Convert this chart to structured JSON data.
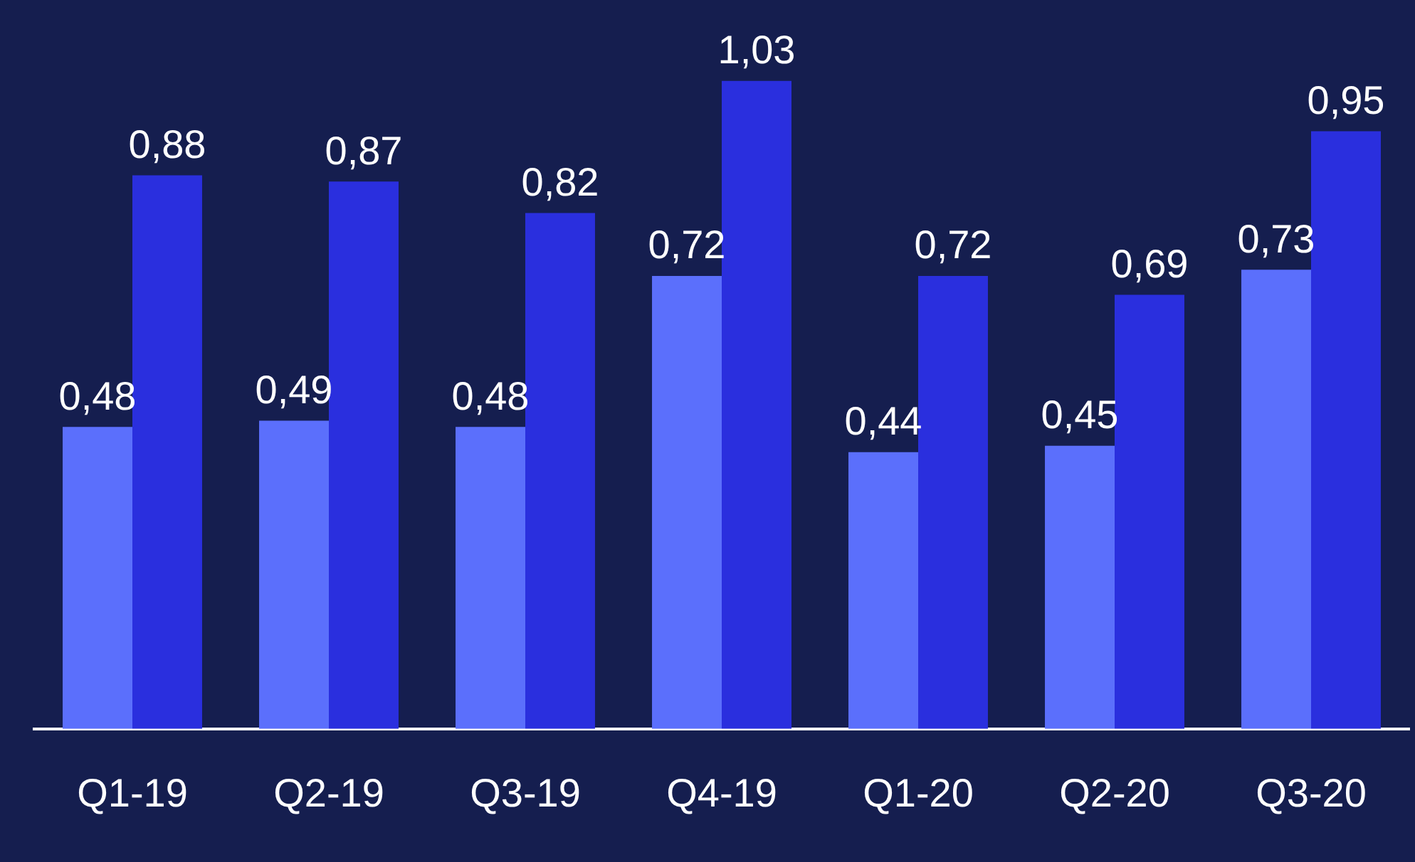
{
  "chart_data": {
    "type": "bar",
    "categories": [
      "Q1-19",
      "Q2-19",
      "Q3-19",
      "Q4-19",
      "Q1-20",
      "Q2-20",
      "Q3-20"
    ],
    "series": [
      {
        "color": "#5b6ffc",
        "values": [
          0.48,
          0.49,
          0.48,
          0.72,
          0.44,
          0.45,
          0.73
        ],
        "value_labels": [
          "0,48",
          "0,49",
          "0,48",
          "0,72",
          "0,44",
          "0,45",
          "0,73"
        ]
      },
      {
        "color": "#2a2fde",
        "values": [
          0.88,
          0.87,
          0.82,
          1.03,
          0.72,
          0.69,
          0.95
        ],
        "value_labels": [
          "0,88",
          "0,87",
          "0,82",
          "1,03",
          "0,72",
          "0,69",
          "0,95"
        ]
      }
    ],
    "legend": false,
    "grid": false
  }
}
